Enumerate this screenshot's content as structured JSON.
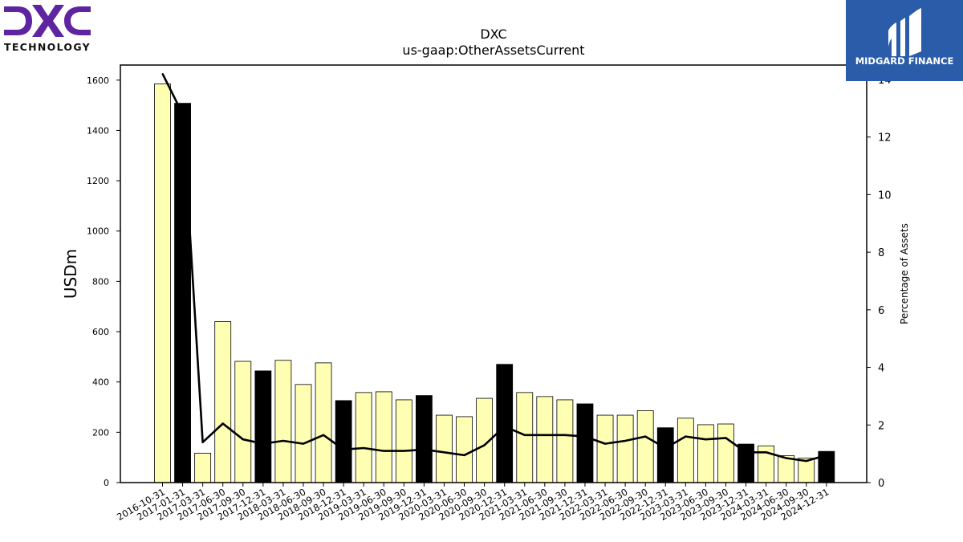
{
  "branding": {
    "company_logo_text": "TECHNOLOGY",
    "company_logo_mark": "DXC",
    "company_logo_color": "#5f249f",
    "publisher_logo_text": "MIDGARD FINANCE",
    "publisher_logo_color": "#2a5caa"
  },
  "chart_data": {
    "type": "bar",
    "title": "DXC",
    "subtitle": "us-gaap:OtherAssetsCurrent",
    "ylabel": "USDm",
    "y2label": "Percentage of Assets",
    "ylim": [
      0,
      1660
    ],
    "y2lim": [
      0,
      14.5
    ],
    "yticks": [
      0,
      200,
      400,
      600,
      800,
      1000,
      1200,
      1400,
      1600
    ],
    "y2ticks": [
      0,
      2,
      4,
      6,
      8,
      10,
      12,
      14
    ],
    "grid": false,
    "bar_colors": {
      "quarter": "#ffffb3",
      "fiscal_year_end": "#000000"
    },
    "line_color": "#000000",
    "categories": [
      "2016-10-31",
      "2017-01-31",
      "2017-03-31",
      "2017-06-30",
      "2017-09-30",
      "2017-12-31",
      "2018-03-31",
      "2018-06-30",
      "2018-09-30",
      "2018-12-31",
      "2019-03-31",
      "2019-06-30",
      "2019-09-30",
      "2019-12-31",
      "2020-03-31",
      "2020-06-30",
      "2020-09-30",
      "2020-12-31",
      "2021-03-31",
      "2021-06-30",
      "2021-09-30",
      "2021-12-31",
      "2022-03-31",
      "2022-06-30",
      "2022-09-30",
      "2022-12-31",
      "2023-03-31",
      "2023-06-30",
      "2023-09-30",
      "2023-12-31",
      "2024-03-31",
      "2024-06-30",
      "2024-09-30",
      "2024-12-31"
    ],
    "series": [
      {
        "type": "bar",
        "values": [
          1585,
          1508,
          117,
          640,
          482,
          444,
          486,
          390,
          476,
          326,
          358,
          361,
          329,
          346,
          268,
          262,
          335,
          470,
          358,
          342,
          329,
          313,
          268,
          268,
          286,
          218,
          256,
          230,
          233,
          153,
          146,
          107,
          97,
          124
        ],
        "highlight": [
          false,
          true,
          false,
          false,
          false,
          true,
          false,
          false,
          false,
          true,
          false,
          false,
          false,
          true,
          false,
          false,
          false,
          true,
          false,
          false,
          false,
          true,
          false,
          false,
          false,
          true,
          false,
          false,
          false,
          true,
          false,
          false,
          false,
          true
        ]
      },
      {
        "type": "line",
        "axis": "right",
        "values": [
          14.2,
          12.8,
          1.4,
          2.05,
          1.5,
          1.35,
          1.45,
          1.35,
          1.65,
          1.15,
          1.2,
          1.1,
          1.1,
          1.15,
          1.05,
          0.95,
          1.3,
          1.95,
          1.65,
          1.65,
          1.65,
          1.6,
          1.35,
          1.45,
          1.6,
          1.2,
          1.6,
          1.5,
          1.55,
          1.05,
          1.05,
          0.85,
          0.75,
          0.95
        ]
      }
    ]
  }
}
